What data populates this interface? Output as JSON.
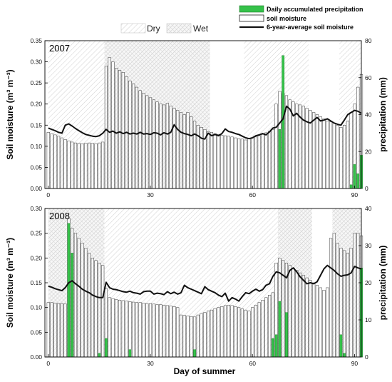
{
  "legend": {
    "shading": [
      {
        "label": "Dry",
        "pattern": "dry"
      },
      {
        "label": "Wet",
        "pattern": "wet"
      }
    ],
    "series": [
      {
        "label": "Daily accumulated precipitation",
        "kind": "bar",
        "color": "#35c24a"
      },
      {
        "label": "soil moisture",
        "kind": "hollow-bar",
        "color": "#000000"
      },
      {
        "label": "6-year-average soil moisture",
        "kind": "line",
        "color": "#111111"
      }
    ]
  },
  "chart_data": [
    {
      "type": "bar",
      "title": "2007",
      "xlabel": "",
      "ylabel_left": "Soil moisture (m³ m⁻³)",
      "ylabel_right": "precipitation (mm)",
      "xlim": [
        -1,
        92
      ],
      "ylim_left": [
        0,
        0.35
      ],
      "ylim_right": [
        0,
        80
      ],
      "xticks": [
        0,
        30,
        60,
        90
      ],
      "yticks_left": [
        0.0,
        0.05,
        0.1,
        0.15,
        0.2,
        0.25,
        0.3,
        0.35
      ],
      "yticks_right": [
        0,
        20,
        40,
        60,
        80
      ],
      "periods": [
        {
          "type": "dry",
          "start": 0,
          "end": 16.5
        },
        {
          "type": "wet",
          "start": 16.5,
          "end": 47.5
        },
        {
          "type": "dry",
          "start": 57.5,
          "end": 76.5
        },
        {
          "type": "dry",
          "start": 85.5,
          "end": 92
        }
      ],
      "soil_moisture": [
        0.133,
        0.13,
        0.127,
        0.124,
        0.12,
        0.116,
        0.113,
        0.11,
        0.108,
        0.107,
        0.106,
        0.107,
        0.108,
        0.107,
        0.106,
        0.108,
        0.11,
        0.29,
        0.31,
        0.3,
        0.285,
        0.28,
        0.275,
        0.265,
        0.255,
        0.248,
        0.24,
        0.232,
        0.226,
        0.22,
        0.215,
        0.21,
        0.205,
        0.2,
        0.198,
        0.202,
        0.195,
        0.19,
        0.185,
        0.18,
        0.175,
        0.18,
        0.17,
        0.16,
        0.15,
        0.145,
        0.14,
        0.135,
        0.133,
        0.13,
        0.128,
        0.126,
        0.125,
        0.124,
        0.122,
        0.12,
        0.118,
        0.117,
        0.115,
        0.118,
        0.12,
        0.122,
        0.125,
        0.128,
        0.132,
        0.135,
        0.14,
        0.2,
        0.23,
        0.225,
        0.22,
        0.21,
        0.205,
        0.2,
        0.198,
        0.195,
        0.19,
        0.185,
        0.18,
        0.175,
        0.17,
        0.165,
        0.16,
        0.158,
        0.155,
        0.15,
        0.145,
        0.15,
        0.16,
        0.18,
        0.2,
        0.24,
        0.27
      ],
      "precipitation": [
        0,
        0,
        0,
        0,
        0,
        0,
        0,
        0,
        0,
        0,
        0,
        0,
        0,
        0,
        0,
        0,
        0,
        0,
        0,
        0,
        0,
        0,
        0,
        0,
        0,
        0,
        0,
        0,
        0,
        0,
        0,
        0,
        0,
        0,
        0,
        0,
        0,
        0,
        0,
        0,
        0,
        0,
        0,
        0,
        0,
        0,
        0,
        0,
        0,
        0,
        0,
        0,
        0,
        0,
        0,
        0,
        0,
        0,
        0,
        0,
        0,
        0,
        0,
        0,
        0,
        0,
        0,
        0,
        32,
        72,
        0,
        0,
        0,
        0,
        0,
        0,
        0,
        0,
        0,
        0,
        0,
        0,
        0,
        0,
        0,
        0,
        0,
        0,
        0,
        2,
        13,
        8,
        18
      ],
      "avg_soil_moisture": [
        0.143,
        0.14,
        0.137,
        0.133,
        0.131,
        0.15,
        0.153,
        0.148,
        0.142,
        0.137,
        0.132,
        0.128,
        0.126,
        0.124,
        0.123,
        0.125,
        0.131,
        0.14,
        0.133,
        0.136,
        0.131,
        0.134,
        0.13,
        0.133,
        0.129,
        0.131,
        0.129,
        0.133,
        0.129,
        0.13,
        0.128,
        0.132,
        0.131,
        0.127,
        0.132,
        0.129,
        0.133,
        0.151,
        0.14,
        0.133,
        0.13,
        0.128,
        0.125,
        0.129,
        0.125,
        0.119,
        0.117,
        0.131,
        0.125,
        0.128,
        0.125,
        0.13,
        0.141,
        0.135,
        0.133,
        0.13,
        0.128,
        0.124,
        0.12,
        0.118,
        0.12,
        0.125,
        0.127,
        0.13,
        0.127,
        0.134,
        0.143,
        0.145,
        0.155,
        0.165,
        0.195,
        0.188,
        0.172,
        0.178,
        0.169,
        0.162,
        0.158,
        0.155,
        0.162,
        0.168,
        0.16,
        0.162,
        0.165,
        0.16,
        0.155,
        0.152,
        0.15,
        0.162,
        0.175,
        0.18,
        0.185,
        0.183,
        0.178
      ]
    },
    {
      "type": "bar",
      "title": "2008",
      "xlabel": "Day of summer",
      "ylabel_left": "Soil moisture (m³ m⁻³)",
      "ylabel_right": "precipitation (mm)",
      "xlim": [
        -1,
        92
      ],
      "ylim_left": [
        0,
        0.3
      ],
      "ylim_right": [
        0,
        40
      ],
      "xticks": [
        0,
        30,
        60,
        90
      ],
      "yticks_left": [
        0.0,
        0.05,
        0.1,
        0.15,
        0.2,
        0.25,
        0.3
      ],
      "yticks_right": [
        0,
        10,
        20,
        30,
        40
      ],
      "periods": [
        {
          "type": "wet",
          "start": 0,
          "end": 16.5
        },
        {
          "type": "dry",
          "start": 16.5,
          "end": 67.5
        },
        {
          "type": "wet",
          "start": 67.5,
          "end": 77.5
        },
        {
          "type": "wet",
          "start": 83.5,
          "end": 92
        }
      ],
      "soil_moisture": [
        0.11,
        0.11,
        0.109,
        0.108,
        0.108,
        0.107,
        0.28,
        0.26,
        0.25,
        0.24,
        0.23,
        0.22,
        0.21,
        0.2,
        0.195,
        0.19,
        0.185,
        0.138,
        0.12,
        0.118,
        0.116,
        0.115,
        0.114,
        0.113,
        0.112,
        0.111,
        0.11,
        0.11,
        0.109,
        0.108,
        0.108,
        0.107,
        0.106,
        0.106,
        0.105,
        0.104,
        0.103,
        0.102,
        0.1,
        0.085,
        0.084,
        0.083,
        0.082,
        0.081,
        0.085,
        0.088,
        0.09,
        0.093,
        0.095,
        0.098,
        0.1,
        0.102,
        0.104,
        0.105,
        0.104,
        0.102,
        0.1,
        0.097,
        0.095,
        0.093,
        0.1,
        0.105,
        0.11,
        0.115,
        0.12,
        0.125,
        0.13,
        0.19,
        0.2,
        0.195,
        0.19,
        0.185,
        0.18,
        0.175,
        0.17,
        0.165,
        0.16,
        0.155,
        0.15,
        0.145,
        0.14,
        0.135,
        0.14,
        0.24,
        0.25,
        0.23,
        0.22,
        0.215,
        0.21,
        0.22,
        0.25,
        0.25,
        0.245
      ],
      "precipitation": [
        0,
        0,
        0,
        0,
        0,
        0,
        36,
        28,
        0,
        0,
        0,
        0,
        0,
        0,
        0,
        1,
        0,
        5,
        0,
        0,
        0,
        0,
        0,
        0,
        2,
        0,
        0,
        0,
        0,
        0,
        0,
        0,
        0,
        0,
        0,
        0,
        0,
        0,
        0,
        0,
        0,
        0,
        0,
        2,
        0,
        0,
        0,
        0,
        0,
        0,
        0,
        0,
        0,
        0,
        0,
        0,
        0,
        0,
        0,
        0,
        0,
        0,
        0,
        0,
        0,
        0,
        5,
        6,
        15,
        0,
        12,
        0,
        0,
        0,
        0,
        0,
        0,
        0,
        0,
        0,
        0,
        0,
        0,
        0,
        0,
        0,
        6,
        1,
        0,
        0,
        0,
        0,
        24
      ],
      "avg_soil_moisture": [
        0.143,
        0.141,
        0.138,
        0.136,
        0.134,
        0.14,
        0.15,
        0.154,
        0.148,
        0.143,
        0.137,
        0.133,
        0.13,
        0.125,
        0.122,
        0.12,
        0.12,
        0.151,
        0.14,
        0.137,
        0.136,
        0.134,
        0.132,
        0.131,
        0.133,
        0.13,
        0.129,
        0.127,
        0.132,
        0.133,
        0.133,
        0.127,
        0.129,
        0.128,
        0.126,
        0.132,
        0.128,
        0.131,
        0.127,
        0.13,
        0.145,
        0.14,
        0.137,
        0.134,
        0.131,
        0.128,
        0.142,
        0.136,
        0.133,
        0.13,
        0.125,
        0.122,
        0.129,
        0.113,
        0.12,
        0.117,
        0.113,
        0.122,
        0.13,
        0.128,
        0.133,
        0.137,
        0.133,
        0.136,
        0.145,
        0.148,
        0.163,
        0.172,
        0.17,
        0.165,
        0.16,
        0.175,
        0.18,
        0.172,
        0.162,
        0.155,
        0.148,
        0.15,
        0.148,
        0.152,
        0.165,
        0.178,
        0.185,
        0.18,
        0.175,
        0.168,
        0.163,
        0.165,
        0.166,
        0.17,
        0.183,
        0.18,
        0.178
      ]
    }
  ]
}
